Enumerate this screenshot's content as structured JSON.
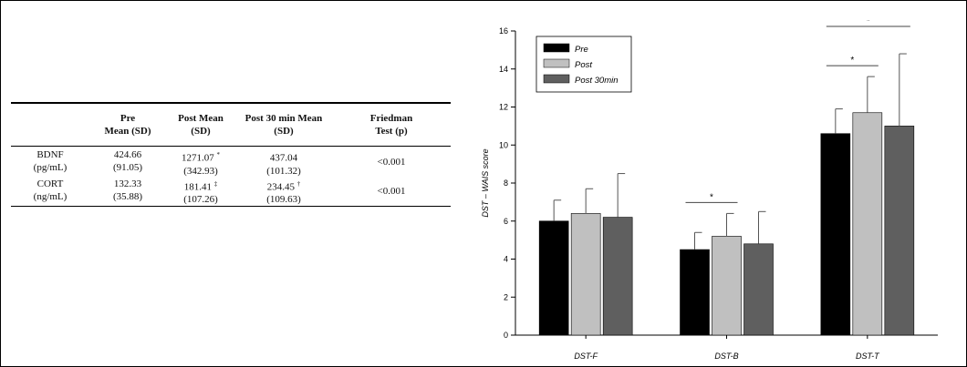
{
  "table": {
    "headers": [
      {
        "line1": "",
        "line2": ""
      },
      {
        "line1": "Pre",
        "line2": "Mean (SD)"
      },
      {
        "line1": "Post Mean",
        "line2": "(SD)"
      },
      {
        "line1": "Post 30 min Mean",
        "line2": "(SD)"
      },
      {
        "line1": "Friedman",
        "line2": "Test (p)"
      }
    ],
    "rows": [
      {
        "label1": "BDNF",
        "label2": "(pg/mL)",
        "pre_mean": "424.66",
        "pre_sd": "(91.05)",
        "post_mean": "1271.07",
        "post_mark": "*",
        "post_sd": "(342.93)",
        "post30_mean": "437.04",
        "post30_mark": "",
        "post30_sd": "(101.32)",
        "friedman": "<0.001"
      },
      {
        "label1": "CORT",
        "label2": "(ng/mL)",
        "pre_mean": "132.33",
        "pre_sd": "(35.88)",
        "post_mean": "181.41",
        "post_mark": "‡",
        "post_sd": "(107.26)",
        "post30_mean": "234.45",
        "post30_mark": "†",
        "post30_sd": "(109.63)",
        "friedman": "<0.001"
      }
    ]
  },
  "chart_data": {
    "type": "bar",
    "categories": [
      "DST-F",
      "DST-B",
      "DST-T"
    ],
    "ylabel": "DST – WAIS score",
    "ylim": [
      0,
      16
    ],
    "yticks": [
      0,
      2,
      4,
      6,
      8,
      10,
      12,
      14,
      16
    ],
    "legend_position": "top-left",
    "series": [
      {
        "name": "Pre",
        "color": "#000000",
        "values": [
          6.0,
          4.5,
          10.6
        ],
        "errors": [
          1.1,
          0.9,
          1.3
        ]
      },
      {
        "name": "Post",
        "color": "#c0c0c0",
        "values": [
          6.4,
          5.2,
          11.7
        ],
        "errors": [
          1.3,
          1.2,
          1.9
        ]
      },
      {
        "name": "Post 30min",
        "color": "#5f5f5f",
        "values": [
          6.2,
          4.8,
          11.0
        ],
        "errors": [
          2.3,
          1.7,
          3.8
        ]
      }
    ],
    "significance": [
      {
        "category": "DST-B",
        "from": "Pre",
        "to": "Post",
        "label": "*"
      },
      {
        "category": "DST-T",
        "from": "Pre",
        "to": "Post",
        "label": "*"
      },
      {
        "category": "DST-T",
        "from": "Pre",
        "to": "Post 30min",
        "label": "*"
      }
    ]
  }
}
